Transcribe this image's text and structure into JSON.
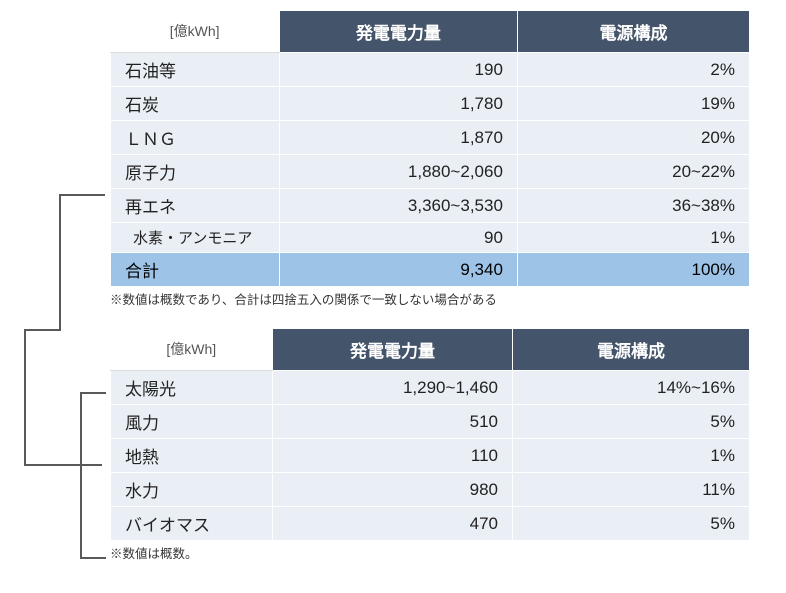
{
  "unit_header": "[億kWh]",
  "columns": {
    "c1": "発電電力量",
    "c2": "電源構成"
  },
  "table1": {
    "rows": [
      {
        "label": "石油等",
        "val": "190",
        "pct": "2%"
      },
      {
        "label": "石炭",
        "val": "1,780",
        "pct": "19%"
      },
      {
        "label": "ＬＮＧ",
        "val": "1,870",
        "pct": "20%"
      },
      {
        "label": "原子力",
        "val": "1,880~2,060",
        "pct": "20~22%"
      },
      {
        "label": "再エネ",
        "val": "3,360~3,530",
        "pct": "36~38%"
      },
      {
        "label": "水素・アンモニア",
        "val": "90",
        "pct": "1%",
        "sub": true
      },
      {
        "label": "合計",
        "val": "9,340",
        "pct": "100%",
        "highlight": true
      }
    ],
    "footnote": "※数値は概数であり、合計は四捨五入の関係で一致しない場合がある"
  },
  "table2": {
    "rows": [
      {
        "label": "太陽光",
        "val": "1,290~1,460",
        "pct": "14%~16%"
      },
      {
        "label": "風力",
        "val": "510",
        "pct": "5%"
      },
      {
        "label": "地熱",
        "val": "110",
        "pct": "1%"
      },
      {
        "label": "水力",
        "val": "980",
        "pct": "11%"
      },
      {
        "label": "バイオマス",
        "val": "470",
        "pct": "5%"
      }
    ],
    "footnote": "※数値は概数。"
  },
  "colors": {
    "header_bg": "#44546a",
    "highlight_bg": "#9dc3e6",
    "cell_bg": "#eaeff5",
    "bracket_stroke": "#595959"
  }
}
